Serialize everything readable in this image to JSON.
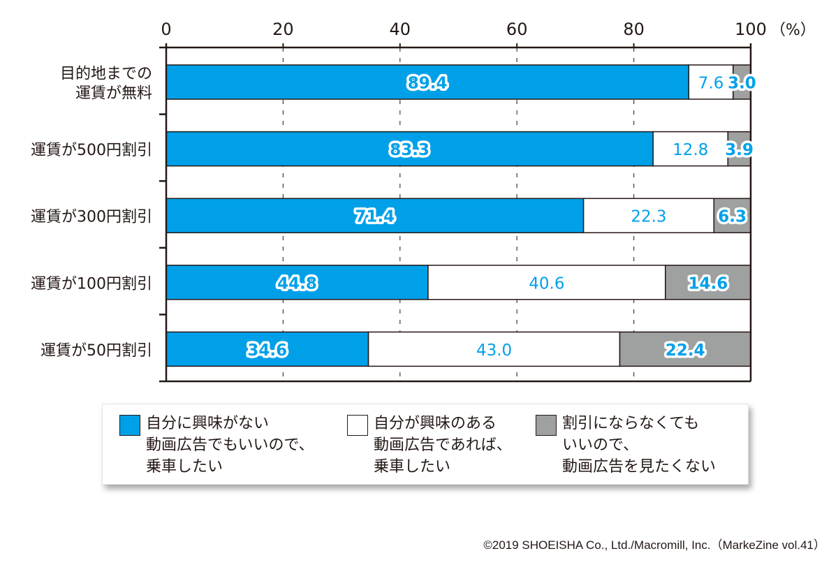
{
  "chart_data": {
    "type": "bar",
    "orientation": "horizontal",
    "stacked": true,
    "title": "",
    "xlabel": "",
    "ylabel": "",
    "x_unit_label": "（%）",
    "xlim": [
      0,
      100
    ],
    "x_ticks": [
      "0",
      "20",
      "40",
      "60",
      "80",
      "100"
    ],
    "x_tick_values": [
      0,
      20,
      40,
      60,
      80,
      100
    ],
    "grid": "vertical dashed at 20, 40, 60, 80",
    "legend_position": "bottom",
    "categories": [
      [
        "目的地までの",
        "運賃が無料"
      ],
      [
        "運賃が500円割引"
      ],
      [
        "運賃が300円割引"
      ],
      [
        "運賃が100円割引"
      ],
      [
        "運賃が50円割引"
      ]
    ],
    "series": [
      {
        "name": "自分に興味がない動画広告でもいいので、乗車したい",
        "legend_lines": [
          "自分に興味がない",
          "動画広告でもいいので、",
          "乗車したい"
        ],
        "color": "#00a0e9",
        "values": [
          89.4,
          83.3,
          71.4,
          44.8,
          34.6
        ],
        "labels": [
          "89.4",
          "83.3",
          "71.4",
          "44.8",
          "34.6"
        ],
        "label_style": "outlined"
      },
      {
        "name": "自分が興味のある動画広告であれば、乗車したい",
        "legend_lines": [
          "自分が興味のある",
          "動画広告であれば、",
          "乗車したい"
        ],
        "color": "#ffffff",
        "values": [
          7.6,
          12.8,
          22.3,
          40.6,
          43.0
        ],
        "labels": [
          "7.6",
          "12.8",
          "22.3",
          "40.6",
          "43.0"
        ],
        "label_style": "plain"
      },
      {
        "name": "割引にならなくてもいいので、動画広告を見たくない",
        "legend_lines": [
          "割引にならなくても",
          "いいので、",
          "動画広告を見たくない"
        ],
        "color": "#9fa0a0",
        "values": [
          3.0,
          3.9,
          6.3,
          14.6,
          22.4
        ],
        "labels": [
          "3.0",
          "3.9",
          "6.3",
          "14.6",
          "22.4"
        ],
        "label_style": "outlined"
      }
    ],
    "label_color": "#00a0e9"
  },
  "copyright": "©2019 SHOEISHA Co., Ltd./Macromill, Inc.（MarkeZine vol.41）"
}
